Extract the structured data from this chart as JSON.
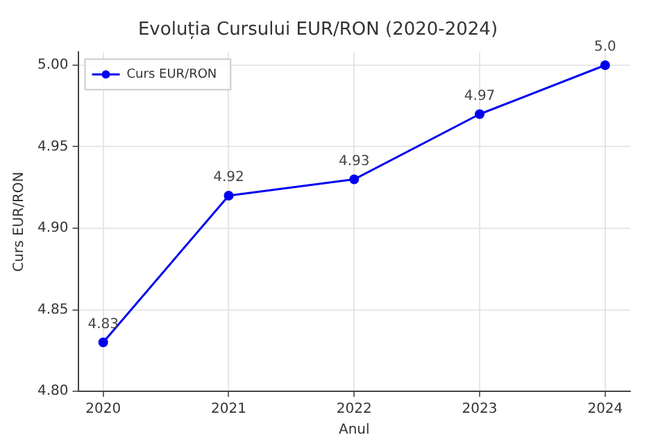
{
  "chart_data": {
    "type": "line",
    "title": "Evoluția Cursului EUR/RON (2020-2024)",
    "xlabel": "Anul",
    "ylabel": "Curs EUR/RON",
    "x": [
      2020,
      2021,
      2022,
      2023,
      2024
    ],
    "series": [
      {
        "name": "Curs EUR/RON",
        "color": "#0000ee",
        "values": [
          4.83,
          4.92,
          4.93,
          4.97,
          5.0
        ],
        "value_labels": [
          "4.83",
          "4.92",
          "4.93",
          "4.97",
          "5.0"
        ]
      }
    ],
    "xlim": [
      2019.8,
      2024.2
    ],
    "xticks": [
      2020,
      2021,
      2022,
      2023,
      2024
    ],
    "ylim": [
      4.8,
      5.008
    ],
    "yticks": [
      {
        "value": 4.8,
        "label": "4.80"
      },
      {
        "value": 4.85,
        "label": "4.85"
      },
      {
        "value": 4.9,
        "label": "4.90"
      },
      {
        "value": 4.95,
        "label": "4.95"
      },
      {
        "value": 5.0,
        "label": "5.00"
      }
    ],
    "grid": true,
    "legend": "top left",
    "marker": "circle",
    "line_style": "solid"
  }
}
